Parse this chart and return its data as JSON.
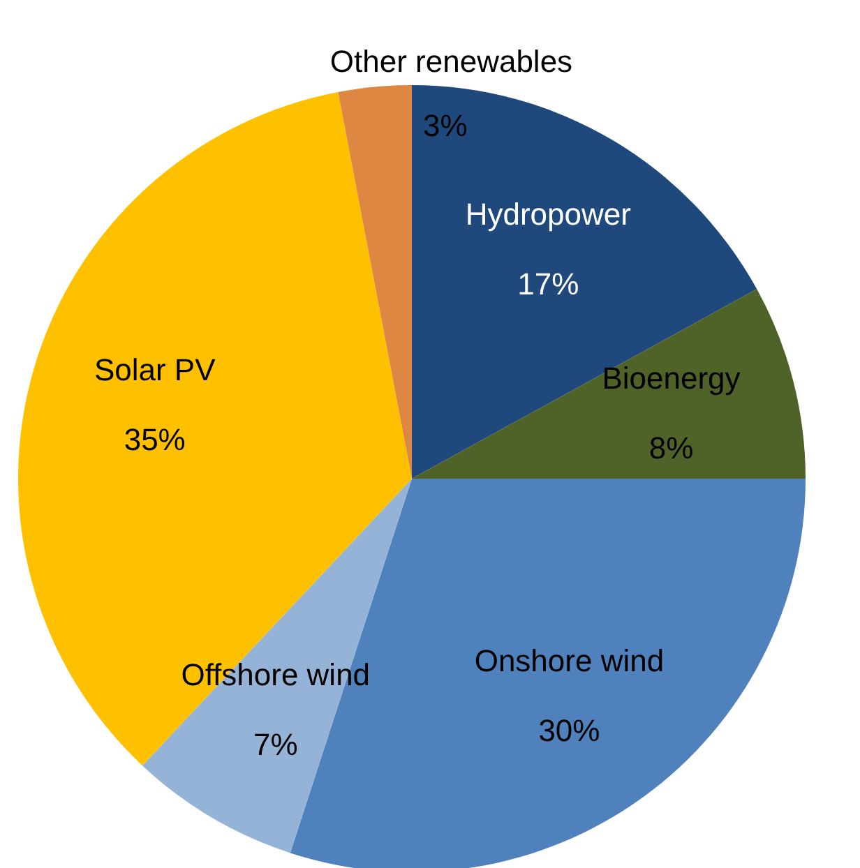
{
  "chart_data": {
    "type": "pie",
    "categories": [
      "Hydropower",
      "Bioenergy",
      "Onshore wind",
      "Offshore wind",
      "Solar PV",
      "Other renewables"
    ],
    "values": [
      17,
      8,
      30,
      7,
      35,
      3
    ],
    "value_labels": [
      "17%",
      "8%",
      "30%",
      "7%",
      "35%",
      "3%"
    ],
    "colors": [
      "#1f497d",
      "#4f6228",
      "#4f81bd",
      "#95b3d7",
      "#ffc000",
      "#dd8743"
    ]
  }
}
